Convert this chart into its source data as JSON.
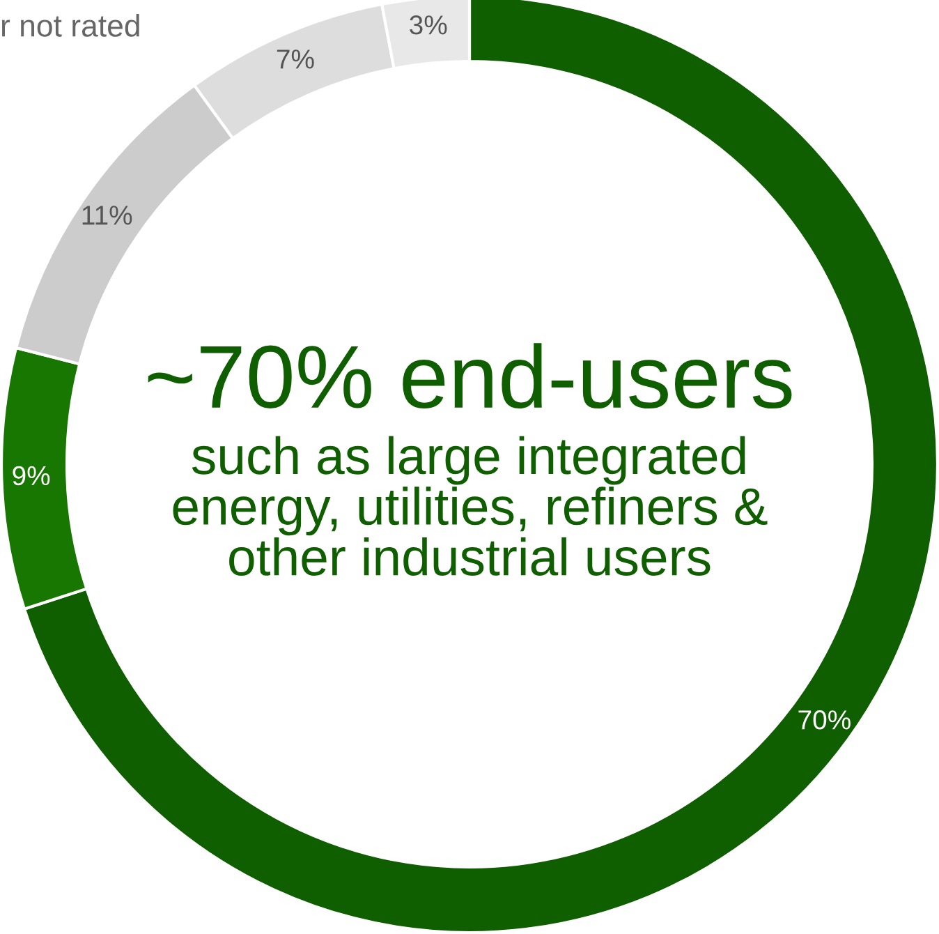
{
  "chart_data": {
    "type": "donut",
    "title": "~70% end-users",
    "subtitle": "such as large integrated\nenergy, utilities, refiners &\nother industrial users",
    "categories": [
      null,
      null,
      null,
      null,
      null
    ],
    "values": [
      70,
      9,
      11,
      7,
      3
    ],
    "colors": [
      "#0f5e00",
      "#177700",
      "#cccccc",
      "#dddddd",
      "#e8e8e8"
    ],
    "value_labels": [
      "70%",
      "9%",
      "11%",
      "7%",
      "3%"
    ],
    "annotations": [
      "r not rated"
    ]
  }
}
